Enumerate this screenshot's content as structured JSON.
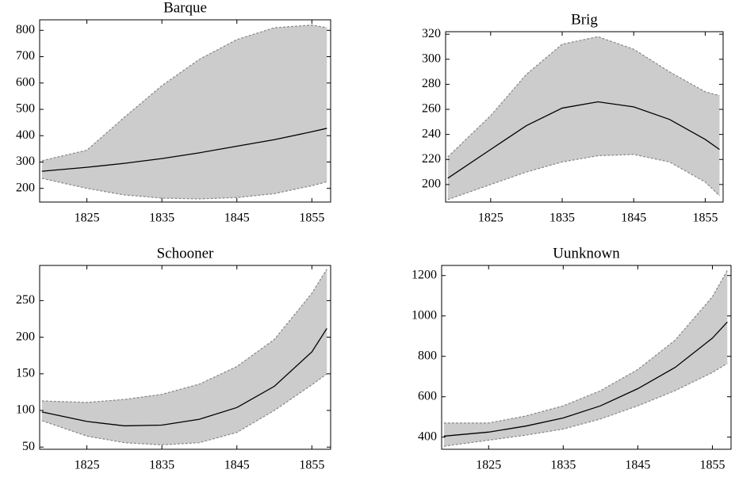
{
  "chart_data": [
    {
      "type": "line",
      "title": "Barque",
      "x": [
        1819,
        1825,
        1830,
        1835,
        1840,
        1845,
        1850,
        1855,
        1857
      ],
      "values": [
        265,
        280,
        295,
        313,
        335,
        360,
        385,
        415,
        428
      ],
      "upper": [
        305,
        345,
        470,
        590,
        690,
        765,
        810,
        820,
        810
      ],
      "lower": [
        238,
        200,
        175,
        163,
        160,
        165,
        180,
        210,
        225
      ],
      "color": "#000000",
      "band_color": "#cccccc",
      "xlim": [
        1818.7,
        1857.5
      ],
      "xticks": [
        1825,
        1835,
        1845,
        1855
      ],
      "ylim": [
        148,
        840
      ],
      "yticks": [
        200,
        300,
        400,
        500,
        600,
        700,
        800
      ]
    },
    {
      "type": "line",
      "title": "Brig",
      "x": [
        1819,
        1825,
        1830,
        1835,
        1840,
        1845,
        1850,
        1855,
        1857
      ],
      "values": [
        205,
        228,
        247,
        261,
        266,
        262,
        252,
        236,
        228
      ],
      "upper": [
        222,
        255,
        288,
        312,
        318,
        308,
        290,
        274,
        271
      ],
      "lower": [
        188,
        200,
        210,
        218,
        223,
        224,
        218,
        202,
        191
      ],
      "color": "#000000",
      "band_color": "#cccccc",
      "xlim": [
        1818.7,
        1857.5
      ],
      "xticks": [
        1825,
        1835,
        1845,
        1855
      ],
      "ylim": [
        186,
        322
      ],
      "yticks": [
        200,
        220,
        240,
        260,
        280,
        300,
        320
      ]
    },
    {
      "type": "line",
      "title": "Schooner",
      "x": [
        1819,
        1825,
        1830,
        1835,
        1840,
        1845,
        1850,
        1855,
        1857
      ],
      "values": [
        98,
        85,
        79,
        80,
        88,
        104,
        133,
        180,
        212
      ],
      "upper": [
        113,
        111,
        115,
        122,
        136,
        160,
        197,
        260,
        293
      ],
      "lower": [
        86,
        65,
        56,
        53,
        56,
        70,
        100,
        135,
        150
      ],
      "color": "#000000",
      "band_color": "#cccccc",
      "xlim": [
        1818.7,
        1857.5
      ],
      "xticks": [
        1825,
        1835,
        1845,
        1855
      ],
      "ylim": [
        47,
        298
      ],
      "yticks": [
        50,
        100,
        150,
        200,
        250
      ]
    },
    {
      "type": "line",
      "title": "Uunknown",
      "x": [
        1819,
        1825,
        1830,
        1835,
        1840,
        1845,
        1850,
        1855,
        1857
      ],
      "values": [
        405,
        425,
        455,
        495,
        555,
        640,
        745,
        890,
        970
      ],
      "upper": [
        470,
        470,
        505,
        555,
        630,
        735,
        880,
        1095,
        1225
      ],
      "lower": [
        355,
        385,
        410,
        440,
        490,
        555,
        630,
        720,
        765
      ],
      "color": "#000000",
      "band_color": "#cccccc",
      "xlim": [
        1818.7,
        1857.5
      ],
      "xticks": [
        1825,
        1835,
        1845,
        1855
      ],
      "ylim": [
        340,
        1250
      ],
      "yticks": [
        400,
        600,
        800,
        1000,
        1200
      ]
    }
  ]
}
